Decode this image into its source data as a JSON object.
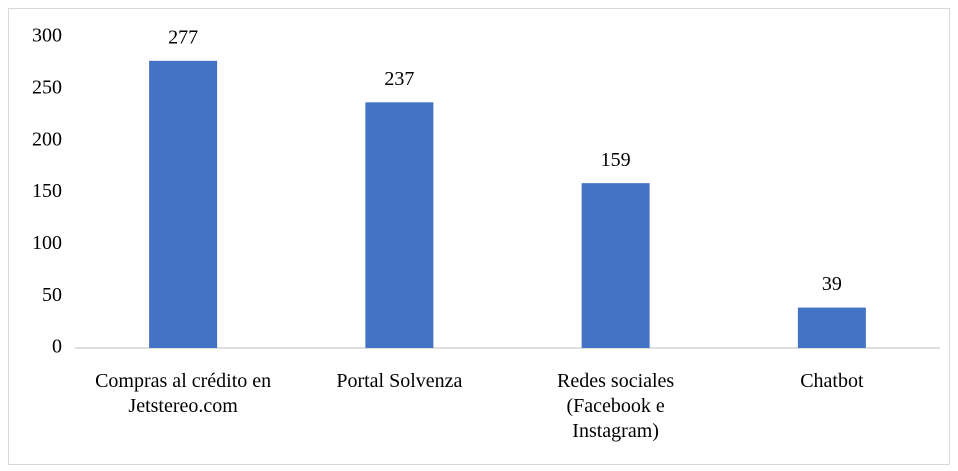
{
  "chart_data": {
    "type": "bar",
    "categories": [
      "Compras al crédito en Jetstereo.com",
      "Portal Solvenza",
      "Redes sociales (Facebook e Instagram)",
      "Chatbot"
    ],
    "values": [
      277,
      237,
      159,
      39
    ],
    "color": "#4472c4",
    "ylim": [
      0,
      300
    ],
    "yticks": [
      0,
      50,
      100,
      150,
      200,
      250,
      300
    ],
    "grid": false
  }
}
